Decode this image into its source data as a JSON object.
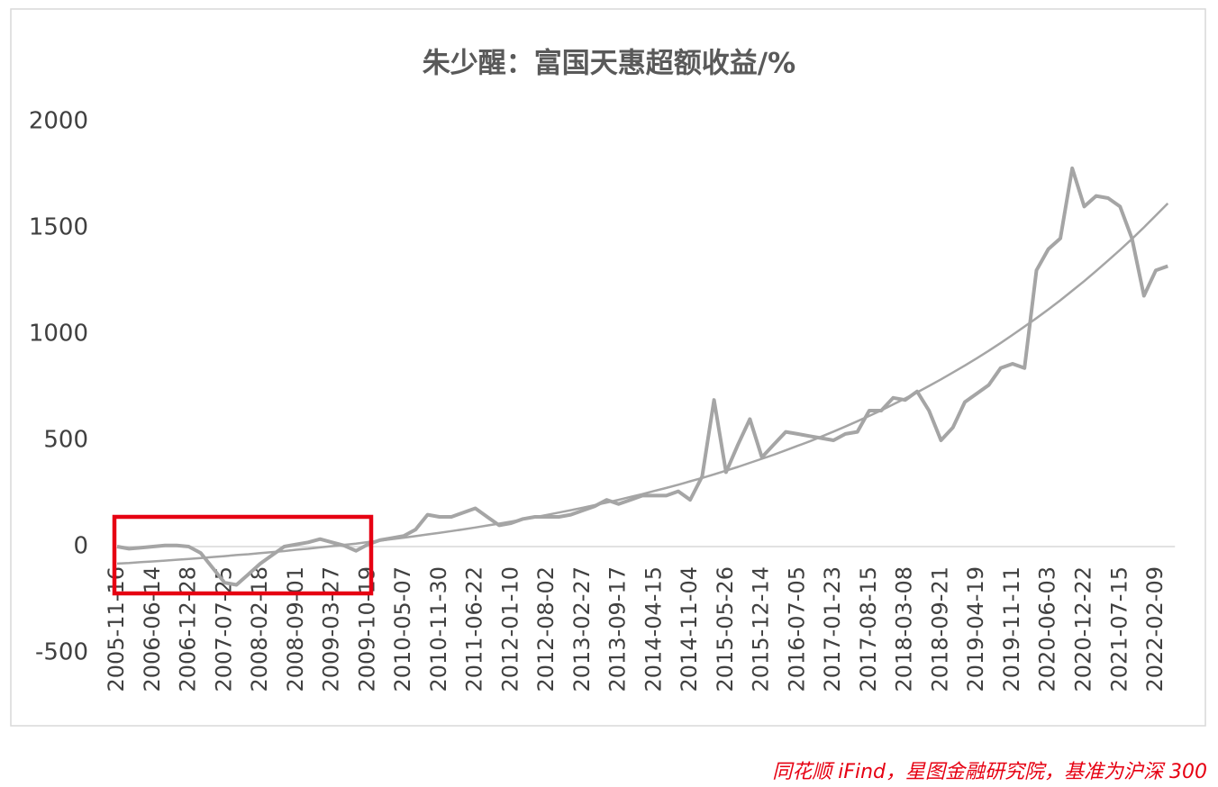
{
  "chart_data": {
    "type": "line",
    "title": "朱少醒：富国天惠超额收益/%",
    "source": "同花顺 iFind，星图金融研究院，基准为沪深 300",
    "categories": [
      "2005-11-16",
      null,
      null,
      "2006-06-14",
      null,
      null,
      "2006-12-28",
      null,
      null,
      "2007-07-25",
      null,
      null,
      "2008-02-18",
      null,
      null,
      "2008-09-01",
      null,
      null,
      "2009-03-27",
      null,
      null,
      "2009-10-19",
      null,
      null,
      "2010-05-07",
      null,
      null,
      "2010-11-30",
      null,
      null,
      "2011-06-22",
      null,
      null,
      "2012-01-10",
      null,
      null,
      "2012-08-02",
      null,
      null,
      "2013-02-27",
      null,
      null,
      "2013-09-17",
      null,
      null,
      "2014-04-15",
      null,
      null,
      "2014-11-04",
      null,
      null,
      "2015-05-26",
      null,
      null,
      "2015-12-14",
      null,
      null,
      "2016-07-05",
      null,
      null,
      "2017-01-23",
      null,
      null,
      "2017-08-15",
      null,
      null,
      "2018-03-08",
      null,
      null,
      "2018-09-21",
      null,
      null,
      "2019-04-19",
      null,
      null,
      "2019-11-11",
      null,
      null,
      "2020-06-03",
      null,
      null,
      "2020-12-22",
      null,
      null,
      "2021-07-15",
      null,
      null,
      "2022-02-09",
      null
    ],
    "series": [
      {
        "color": "#a5a5a5",
        "width": 4,
        "values": [
          0,
          -10,
          -5,
          0,
          5,
          5,
          0,
          -30,
          -100,
          -170,
          -180,
          -130,
          -80,
          -40,
          0,
          10,
          20,
          35,
          20,
          5,
          -20,
          10,
          30,
          40,
          50,
          80,
          150,
          140,
          140,
          160,
          180,
          140,
          100,
          110,
          130,
          140,
          140,
          140,
          150,
          170,
          190,
          220,
          200,
          220,
          240,
          240,
          240,
          260,
          220,
          330,
          690,
          350,
          480,
          600,
          420,
          480,
          540,
          530,
          520,
          510,
          500,
          530,
          540,
          640,
          640,
          700,
          690,
          730,
          640,
          500,
          560,
          680,
          720,
          760,
          840,
          860,
          840,
          1300,
          1400,
          1450,
          1780,
          1600,
          1650,
          1640,
          1600,
          1450,
          1180,
          1300,
          1320
        ]
      },
      {
        "color": "#a5a5a5",
        "width": 2.5,
        "values": [
          -80,
          -77,
          -73,
          -70,
          -66,
          -62,
          -58,
          -54,
          -49,
          -45,
          -40,
          -36,
          -31,
          -26,
          -21,
          -15,
          -10,
          -4,
          2,
          8,
          14,
          21,
          28,
          35,
          42,
          49,
          57,
          65,
          73,
          81,
          90,
          99,
          108,
          118,
          128,
          138,
          149,
          160,
          171,
          183,
          195,
          207,
          220,
          234,
          247,
          262,
          276,
          291,
          307,
          323,
          340,
          357,
          375,
          394,
          413,
          432,
          453,
          474,
          495,
          518,
          541,
          565,
          590,
          615,
          641,
          669,
          697,
          726,
          756,
          787,
          819,
          852,
          886,
          921,
          958,
          996,
          1035,
          1075,
          1116,
          1159,
          1204,
          1249,
          1297,
          1346,
          1396,
          1448,
          1502,
          1558,
          1615
        ]
      }
    ],
    "ylim": [
      -500,
      2000
    ],
    "yticks": [
      -500,
      0,
      500,
      1000,
      1500,
      2000
    ],
    "grid": false
  }
}
